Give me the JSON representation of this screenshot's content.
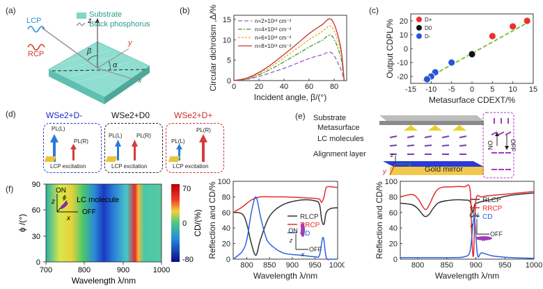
{
  "panels": {
    "a": {
      "label": "(a)",
      "legend": {
        "substrate": "Substrate",
        "bp": "Black phosphorus"
      },
      "lcp": "LCP",
      "rcp": "RCP",
      "axes": {
        "z": "z",
        "y": "y",
        "x": "x"
      },
      "angles": {
        "beta": "β",
        "alpha": "α"
      },
      "colors": {
        "substrate": "#7fd6c9",
        "lcp": "#2a8fd8",
        "rcp": "#d23a2a"
      }
    },
    "b": {
      "label": "(b)",
      "xlabel": "Incident angle, β/(°)",
      "ylabel": "Circular dichroism ,Δ/%",
      "xticks": [
        "0",
        "20",
        "40",
        "60",
        "80"
      ],
      "yticks": [
        "0",
        "5",
        "10",
        "15"
      ]
    },
    "c": {
      "label": "(c)",
      "xlabel": "Metasurface CDEXT/%",
      "ylabel": "Output CDPL/%",
      "xticks": [
        "-15",
        "-10",
        "-5",
        "0",
        "5",
        "10",
        "15"
      ],
      "yticks": [
        "-20",
        "-10",
        "0",
        "10",
        "20"
      ],
      "legend": [
        "D+",
        "D0",
        "D-"
      ]
    },
    "d": {
      "label": "(d)",
      "titles": [
        "WSe2+D-",
        "WSe2+D0",
        "WSe2+D+"
      ],
      "pl_l": "PL(L)",
      "pl_r": "PL(R)",
      "excitation": "LCP excitation"
    },
    "e": {
      "label": "(e)",
      "substrate": "Substrate",
      "metasurface": "Metasurface",
      "lc": "LC molecules",
      "alignment": "Alignment layer",
      "mirror": "Gold mirror",
      "on": "ON",
      "off": "OFF",
      "axes": {
        "z": "z",
        "y": "y",
        "x": "x"
      }
    },
    "f": {
      "label": "(f)",
      "heatmap": {
        "xlabel": "Wavelength λ/nm",
        "ylabel": "ϕ /(°)",
        "xticks": [
          "700",
          "800",
          "900",
          "1000"
        ],
        "yticks": [
          "0",
          "30",
          "60",
          "90"
        ],
        "colorbar_label": "CD/(%)",
        "colorbar_ticks": [
          "70",
          "0",
          "-80"
        ],
        "inset_on": "ON",
        "inset_off": "OFF",
        "inset_lc": "LC molecule",
        "inset_z": "z",
        "inset_x": "x",
        "inset_phi": "ϕ"
      },
      "spec1": {
        "xlabel": "Wavelength λ/nm",
        "ylabel": "Reflection and CD/%",
        "xticks": [
          "800",
          "850",
          "900",
          "950",
          "1000"
        ],
        "yticks": [
          "0",
          "20",
          "40",
          "60",
          "80",
          "100"
        ],
        "legend": [
          "RLCP",
          "RRCP",
          "CD"
        ],
        "inset_on": "ON",
        "inset_off": "OFF",
        "inset_z": "z",
        "inset_x": "x"
      },
      "spec2": {
        "xlabel": "Wavelength λ/nm",
        "ylabel": "Reflection and CD/%",
        "xticks": [
          "800",
          "850",
          "900",
          "950",
          "1000"
        ],
        "yticks": [
          "0",
          "20",
          "40",
          "60",
          "80",
          "100"
        ],
        "legend": [
          "RLCP",
          "RRCP",
          "CD"
        ],
        "inset_on": "ON",
        "inset_off": "OFF",
        "inset_z": "z",
        "inset_x": "x"
      }
    }
  },
  "chart_data": [
    {
      "type": "line",
      "panel": "b",
      "xlabel": "Incident angle, β/(°)",
      "ylabel": "Circular dichroism ,Δ/%",
      "xlim": [
        0,
        90
      ],
      "ylim": [
        0,
        16
      ],
      "series": [
        {
          "name": "n=2×10¹³ cm⁻²",
          "color": "#9b59c8",
          "dash": "6,3",
          "x": [
            0,
            10,
            20,
            30,
            40,
            50,
            60,
            70,
            78,
            85,
            88
          ],
          "y": [
            0,
            0.3,
            1.0,
            2.0,
            3.0,
            4.2,
            5.4,
            6.3,
            6.8,
            3.0,
            0
          ]
        },
        {
          "name": "n=4×10¹³ cm⁻²",
          "color": "#3a9a2a",
          "dash": "6,2,2,2",
          "x": [
            0,
            10,
            20,
            30,
            40,
            50,
            60,
            70,
            78,
            85,
            88
          ],
          "y": [
            0,
            0.4,
            1.4,
            2.9,
            4.6,
            6.4,
            8.2,
            9.8,
            11.0,
            6.0,
            0
          ]
        },
        {
          "name": "n=6×10¹³ cm⁻²",
          "color": "#e6a92a",
          "dash": "3,2",
          "x": [
            0,
            10,
            20,
            30,
            40,
            50,
            60,
            70,
            78,
            85,
            88
          ],
          "y": [
            0,
            0.5,
            1.7,
            3.5,
            5.6,
            7.8,
            10.0,
            11.9,
            13.2,
            7.5,
            0
          ]
        },
        {
          "name": "n=8×10¹³ cm⁻²",
          "color": "#c8322a",
          "dash": "",
          "x": [
            0,
            10,
            20,
            30,
            40,
            50,
            60,
            70,
            78,
            85,
            88
          ],
          "y": [
            0,
            0.6,
            2.0,
            4.0,
            6.4,
            8.9,
            11.5,
            13.6,
            14.9,
            8.5,
            0
          ]
        }
      ]
    },
    {
      "type": "scatter",
      "panel": "c",
      "xlabel": "Metasurface CDEXT/%",
      "ylabel": "Output CDPL/%",
      "xlim": [
        -15,
        15
      ],
      "ylim": [
        -25,
        25
      ],
      "series": [
        {
          "name": "D+",
          "color": "#e8322a",
          "x": [
            5,
            10,
            13.5
          ],
          "y": [
            9,
            16,
            20
          ]
        },
        {
          "name": "D0",
          "color": "#111111",
          "x": [
            0
          ],
          "y": [
            -4
          ]
        },
        {
          "name": "D-",
          "color": "#2a55d8",
          "x": [
            -5,
            -9,
            -10,
            -11
          ],
          "y": [
            -10,
            -17,
            -20,
            -22
          ]
        }
      ],
      "fit": {
        "x": [
          -12,
          15
        ],
        "y": [
          -23,
          21
        ],
        "color": "#7cc43a"
      }
    },
    {
      "type": "line",
      "panel": "f-spec1",
      "xlim": [
        770,
        1000
      ],
      "ylim": [
        0,
        100
      ],
      "series": [
        {
          "name": "RLCP",
          "color": "#333333",
          "x": [
            770,
            790,
            800,
            810,
            820,
            830,
            850,
            880,
            920,
            950,
            960,
            965,
            970,
            975,
            985,
            1000
          ],
          "y": [
            60,
            58,
            45,
            20,
            5,
            25,
            55,
            70,
            76,
            75,
            70,
            50,
            45,
            60,
            65,
            66
          ]
        },
        {
          "name": "RRCP",
          "color": "#e82a2a",
          "x": [
            770,
            790,
            810,
            830,
            850,
            880,
            920,
            950,
            960,
            965,
            970,
            975,
            985,
            1000
          ],
          "y": [
            60,
            67,
            76,
            80,
            80,
            80,
            79,
            78,
            77,
            73,
            80,
            92,
            93,
            92
          ]
        },
        {
          "name": "CD",
          "color": "#2a60e0",
          "x": [
            770,
            790,
            800,
            810,
            820,
            830,
            840,
            850,
            880,
            920,
            950,
            960,
            968,
            975,
            985,
            1000
          ],
          "y": [
            0,
            10,
            25,
            60,
            80,
            55,
            32,
            20,
            8,
            5,
            3,
            5,
            28,
            2,
            0,
            0
          ]
        }
      ]
    },
    {
      "type": "line",
      "panel": "f-spec2",
      "xlim": [
        770,
        1000
      ],
      "ylim": [
        0,
        100
      ],
      "series": [
        {
          "name": "RLCP",
          "color": "#333333",
          "x": [
            770,
            790,
            800,
            810,
            815,
            820,
            835,
            860,
            880,
            890,
            895,
            898,
            902,
            910,
            930,
            960,
            1000
          ],
          "y": [
            72,
            70,
            65,
            56,
            55,
            58,
            72,
            76,
            76,
            74,
            60,
            70,
            72,
            74,
            77,
            82,
            85
          ]
        },
        {
          "name": "RRCP",
          "color": "#e82a2a",
          "x": [
            770,
            790,
            800,
            810,
            815,
            820,
            835,
            860,
            880,
            890,
            893,
            896,
            900,
            910,
            930,
            960,
            1000
          ],
          "y": [
            80,
            83,
            78,
            66,
            64,
            70,
            90,
            93,
            93,
            90,
            30,
            5,
            75,
            80,
            82,
            84,
            87
          ]
        },
        {
          "name": "CD",
          "color": "#2a60e0",
          "x": [
            770,
            800,
            830,
            860,
            880,
            890,
            895,
            898,
            903,
            910,
            930,
            960,
            1000
          ],
          "y": [
            2,
            2,
            2,
            2,
            3,
            10,
            45,
            50,
            5,
            8,
            4,
            2,
            1
          ]
        }
      ]
    }
  ]
}
